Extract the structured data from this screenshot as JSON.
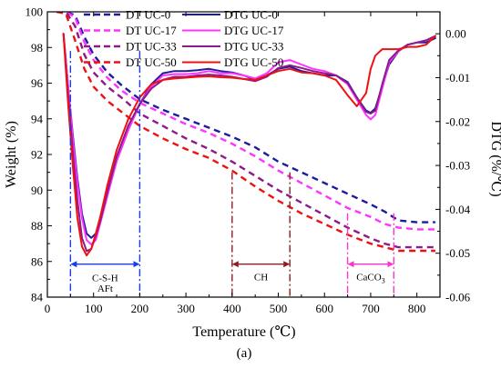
{
  "chart_data": {
    "type": "line",
    "xlabel": "Temperature (℃)",
    "ylabel_left": "Weight (%)",
    "ylabel_right": "DTG (%/℃)",
    "caption": "(a)",
    "xlim": [
      0,
      850
    ],
    "ylim_left": [
      84,
      100
    ],
    "ylim_right": [
      -0.06,
      0.005
    ],
    "x_ticks": [
      0,
      100,
      200,
      300,
      400,
      500,
      600,
      700,
      800
    ],
    "y_left_ticks": [
      84,
      86,
      88,
      90,
      92,
      94,
      96,
      98,
      100
    ],
    "y_right_ticks": [
      0.0,
      -0.01,
      -0.02,
      -0.03,
      -0.04,
      -0.05,
      -0.06
    ],
    "y_right_tick_labels": [
      "0.00",
      "-0.01",
      "-0.02",
      "-0.03",
      "-0.04",
      "-0.05",
      "-0.06"
    ],
    "legend": [
      {
        "name": "DT UC-0",
        "style": "dashed",
        "color": "#1c1c9c"
      },
      {
        "name": "DTG UC-0",
        "style": "solid",
        "color": "#1c1c9c"
      },
      {
        "name": "DT UC-17",
        "style": "dashed",
        "color": "#ff33ff"
      },
      {
        "name": "DTG UC-17",
        "style": "solid",
        "color": "#ff33ff"
      },
      {
        "name": "DT UC-33",
        "style": "dashed",
        "color": "#8b1a8b"
      },
      {
        "name": "DTG UC-33",
        "style": "solid",
        "color": "#8b1a8b"
      },
      {
        "name": "DT UC-50",
        "style": "dashed",
        "color": "#ee1111"
      },
      {
        "name": "DTG UC-50",
        "style": "solid",
        "color": "#ee1111"
      }
    ],
    "series": [
      {
        "name": "DT UC-0",
        "axis": "left",
        "color": "#1c1c9c",
        "style": "dashed",
        "x": [
          20,
          40,
          60,
          80,
          100,
          130,
          160,
          200,
          250,
          300,
          350,
          400,
          450,
          500,
          550,
          600,
          650,
          700,
          730,
          760,
          800,
          840
        ],
        "y": [
          100,
          100,
          99.8,
          98.6,
          97.6,
          96.6,
          95.9,
          95.1,
          94.5,
          94.0,
          93.5,
          93.0,
          92.4,
          91.6,
          91.0,
          90.4,
          89.8,
          89.2,
          88.8,
          88.3,
          88.2,
          88.2
        ]
      },
      {
        "name": "DT UC-17",
        "axis": "left",
        "color": "#ff33ff",
        "style": "dashed",
        "x": [
          20,
          40,
          60,
          80,
          100,
          130,
          160,
          200,
          250,
          300,
          350,
          400,
          450,
          500,
          550,
          600,
          650,
          700,
          730,
          760,
          800,
          840
        ],
        "y": [
          100,
          100,
          99.7,
          98.3,
          97.3,
          96.3,
          95.6,
          94.9,
          94.3,
          93.7,
          93.2,
          92.6,
          91.9,
          91.1,
          90.4,
          89.7,
          89.0,
          88.5,
          88.1,
          87.9,
          87.8,
          87.8
        ]
      },
      {
        "name": "DT UC-33",
        "axis": "left",
        "color": "#8b1a8b",
        "style": "dashed",
        "x": [
          20,
          40,
          60,
          80,
          100,
          130,
          160,
          200,
          250,
          300,
          350,
          400,
          450,
          500,
          550,
          600,
          650,
          700,
          730,
          760,
          800,
          840
        ],
        "y": [
          100,
          100,
          99.2,
          97.6,
          96.6,
          95.8,
          95.2,
          94.3,
          93.6,
          92.9,
          92.3,
          91.6,
          90.8,
          90.0,
          89.3,
          88.6,
          87.9,
          87.3,
          87.0,
          86.8,
          86.8,
          86.8
        ]
      },
      {
        "name": "DT UC-50",
        "axis": "left",
        "color": "#ee1111",
        "style": "dashed",
        "x": [
          20,
          40,
          60,
          80,
          100,
          130,
          160,
          200,
          250,
          300,
          350,
          400,
          450,
          500,
          550,
          600,
          650,
          700,
          730,
          760,
          800,
          840
        ],
        "y": [
          100,
          99.9,
          98.4,
          96.8,
          95.8,
          95.0,
          94.4,
          93.6,
          92.9,
          92.3,
          91.8,
          91.1,
          90.2,
          89.4,
          88.7,
          88.1,
          87.5,
          87.0,
          86.8,
          86.6,
          86.6,
          86.6
        ]
      },
      {
        "name": "DTG UC-0",
        "axis": "right",
        "color": "#1c1c9c",
        "style": "solid",
        "x": [
          35,
          45,
          55,
          65,
          75,
          85,
          95,
          105,
          115,
          130,
          150,
          175,
          200,
          225,
          250,
          275,
          300,
          325,
          350,
          375,
          400,
          425,
          450,
          475,
          500,
          525,
          550,
          575,
          600,
          625,
          650,
          670,
          690,
          700,
          710,
          725,
          740,
          760,
          780,
          800,
          820,
          840
        ],
        "y": [
          0.0,
          -0.012,
          -0.023,
          -0.033,
          -0.041,
          -0.0455,
          -0.0465,
          -0.0455,
          -0.042,
          -0.036,
          -0.029,
          -0.022,
          -0.016,
          -0.0115,
          -0.009,
          -0.0085,
          -0.0085,
          -0.0083,
          -0.008,
          -0.0085,
          -0.0088,
          -0.0095,
          -0.0105,
          -0.0095,
          -0.008,
          -0.0075,
          -0.0085,
          -0.009,
          -0.0095,
          -0.0095,
          -0.011,
          -0.0145,
          -0.0175,
          -0.018,
          -0.017,
          -0.012,
          -0.007,
          -0.004,
          -0.0025,
          -0.002,
          -0.002,
          -0.001
        ]
      },
      {
        "name": "DTG UC-17",
        "axis": "right",
        "color": "#ff33ff",
        "style": "solid",
        "x": [
          35,
          45,
          55,
          65,
          75,
          85,
          95,
          105,
          115,
          130,
          150,
          175,
          200,
          225,
          250,
          275,
          300,
          325,
          350,
          375,
          400,
          425,
          450,
          475,
          500,
          525,
          550,
          575,
          600,
          625,
          650,
          670,
          690,
          700,
          710,
          725,
          740,
          760,
          780,
          800,
          820,
          840
        ],
        "y": [
          0.0,
          -0.012,
          -0.024,
          -0.034,
          -0.042,
          -0.047,
          -0.048,
          -0.047,
          -0.043,
          -0.037,
          -0.029,
          -0.022,
          -0.016,
          -0.012,
          -0.0095,
          -0.0092,
          -0.0092,
          -0.009,
          -0.0085,
          -0.009,
          -0.009,
          -0.0095,
          -0.0102,
          -0.009,
          -0.0065,
          -0.006,
          -0.007,
          -0.008,
          -0.0085,
          -0.0095,
          -0.0115,
          -0.015,
          -0.0185,
          -0.0195,
          -0.0185,
          -0.0125,
          -0.0065,
          -0.004,
          -0.0025,
          -0.002,
          -0.0015,
          -0.0005
        ]
      },
      {
        "name": "DTG UC-33",
        "axis": "right",
        "color": "#8b1a8b",
        "style": "solid",
        "x": [
          35,
          45,
          55,
          65,
          75,
          85,
          95,
          105,
          115,
          130,
          150,
          175,
          200,
          225,
          250,
          275,
          300,
          325,
          350,
          375,
          400,
          425,
          450,
          475,
          500,
          525,
          550,
          575,
          600,
          625,
          650,
          670,
          690,
          700,
          710,
          725,
          740,
          760,
          780,
          800,
          820,
          840
        ],
        "y": [
          0.0,
          -0.014,
          -0.027,
          -0.038,
          -0.0465,
          -0.0495,
          -0.049,
          -0.046,
          -0.0425,
          -0.036,
          -0.028,
          -0.021,
          -0.016,
          -0.0125,
          -0.0105,
          -0.0098,
          -0.0098,
          -0.0095,
          -0.0093,
          -0.0095,
          -0.0098,
          -0.0103,
          -0.0108,
          -0.0098,
          -0.0078,
          -0.0072,
          -0.0078,
          -0.0085,
          -0.009,
          -0.0095,
          -0.0112,
          -0.0145,
          -0.0178,
          -0.0182,
          -0.0175,
          -0.0115,
          -0.006,
          -0.0038,
          -0.0025,
          -0.002,
          -0.0015,
          -0.0005
        ]
      },
      {
        "name": "DTG UC-50",
        "axis": "right",
        "color": "#ee1111",
        "style": "solid",
        "x": [
          35,
          45,
          55,
          65,
          75,
          85,
          95,
          105,
          115,
          130,
          150,
          175,
          200,
          225,
          250,
          275,
          300,
          325,
          350,
          375,
          400,
          425,
          450,
          475,
          500,
          525,
          550,
          575,
          600,
          625,
          650,
          670,
          690,
          700,
          710,
          725,
          740,
          760,
          780,
          800,
          820,
          840
        ],
        "y": [
          0.0,
          -0.016,
          -0.03,
          -0.042,
          -0.0485,
          -0.0505,
          -0.049,
          -0.0455,
          -0.0415,
          -0.0345,
          -0.0265,
          -0.0195,
          -0.0145,
          -0.0115,
          -0.0105,
          -0.0102,
          -0.01,
          -0.0098,
          -0.0097,
          -0.0099,
          -0.01,
          -0.0103,
          -0.0105,
          -0.0095,
          -0.0085,
          -0.008,
          -0.0088,
          -0.009,
          -0.0095,
          -0.0105,
          -0.014,
          -0.0165,
          -0.0135,
          -0.008,
          -0.005,
          -0.0035,
          -0.0035,
          -0.0035,
          -0.003,
          -0.003,
          -0.0025,
          -0.0005
        ]
      }
    ],
    "annotations": [
      {
        "label": "C-S-H",
        "label2": "AFt",
        "x_range": [
          50,
          200
        ],
        "color": "#1a3cf0",
        "y_line_top": 97.8,
        "arrow_y": 85.85,
        "label_y": 85.1,
        "label2_y": 84.5
      },
      {
        "label": "CH",
        "x_range": [
          400,
          525
        ],
        "color": "#8a1f1f",
        "y_line_top": 91.0,
        "arrow_y": 85.85,
        "label_y": 85.15
      },
      {
        "label": "CaCO",
        "subscript": "3",
        "x_range": [
          650,
          750
        ],
        "color": "#ff33cc",
        "y_line_top": 88.7,
        "arrow_y": 85.85,
        "label_y": 85.15
      }
    ]
  }
}
